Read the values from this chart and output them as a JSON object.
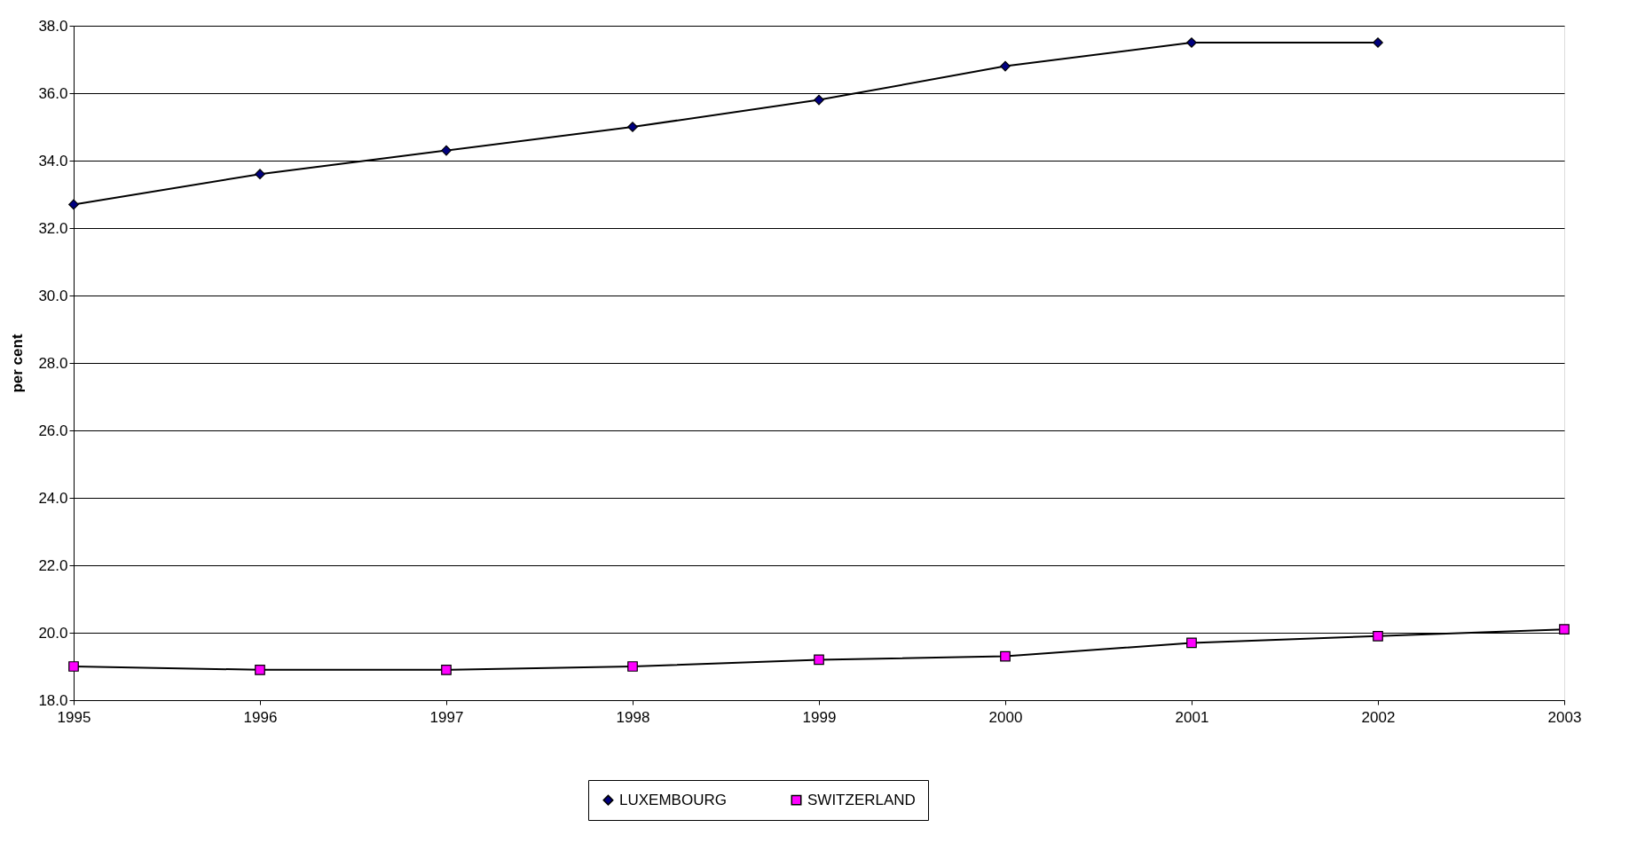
{
  "chart_data": {
    "type": "line",
    "ylabel": "per cent",
    "x": [
      1995,
      1996,
      1997,
      1998,
      1999,
      2000,
      2001,
      2002,
      2003
    ],
    "xlim": [
      1995,
      2003
    ],
    "xticks": [
      1995,
      1996,
      1997,
      1998,
      1999,
      2000,
      2001,
      2002,
      2003
    ],
    "ylim": [
      18,
      38
    ],
    "yticks": [
      {
        "value": 18,
        "label": "18.0"
      },
      {
        "value": 20,
        "label": "20.0"
      },
      {
        "value": 22,
        "label": "22.0"
      },
      {
        "value": 24,
        "label": "24.0"
      },
      {
        "value": 26,
        "label": "26.0"
      },
      {
        "value": 28,
        "label": "28.0"
      },
      {
        "value": 30,
        "label": "30.0"
      },
      {
        "value": 32,
        "label": "32.0"
      },
      {
        "value": 34,
        "label": "34.0"
      },
      {
        "value": 36,
        "label": "36.0"
      },
      {
        "value": 38,
        "label": "38.0"
      }
    ],
    "grid": "y",
    "legend": "bottom",
    "line_style": "solid",
    "series": [
      {
        "name": "LUXEMBOURG",
        "color": "#000080",
        "marker": "diamond",
        "values": [
          32.7,
          33.6,
          34.3,
          35.0,
          35.8,
          36.8,
          37.5,
          37.5,
          null
        ]
      },
      {
        "name": "SWITZERLAND",
        "color": "#ff00ff",
        "marker": "square",
        "values": [
          19.0,
          18.9,
          18.9,
          19.0,
          19.2,
          19.3,
          19.7,
          19.9,
          20.1
        ]
      }
    ]
  }
}
